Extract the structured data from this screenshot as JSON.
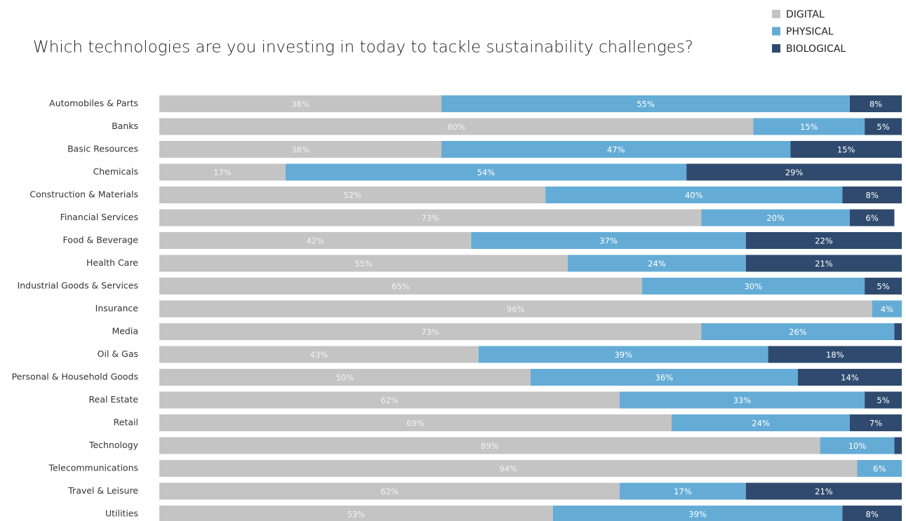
{
  "chart_data": {
    "type": "stacked-bar-horizontal",
    "title": "Which technologies are you investing in today to tackle sustainability challenges?",
    "categories": [
      "Automobiles & Parts",
      "Banks",
      "Basic Resources",
      "Chemicals",
      "Construction & Materials",
      "Financial Services",
      "Food & Beverage",
      "Health Care",
      "Industrial Goods & Services",
      "Insurance",
      "Media",
      "Oil & Gas",
      "Personal & Household Goods",
      "Real Estate",
      "Retail",
      "Technology",
      "Telecommunications",
      "Travel & Leisure",
      "Utilities"
    ],
    "series": [
      {
        "name": "DIGITAL",
        "color": "#c4c4c4",
        "values": [
          38,
          80,
          38,
          17,
          52,
          73,
          42,
          55,
          65,
          96,
          73,
          43,
          50,
          62,
          69,
          89,
          94,
          62,
          53
        ],
        "value_labels": [
          "38%",
          "80%",
          "38%",
          "17%",
          "52%",
          "73%",
          "42%",
          "55%",
          "65%",
          "96%",
          "73%",
          "43%",
          "50%",
          "62%",
          "69%",
          "89%",
          "94%",
          "62%",
          "53%"
        ]
      },
      {
        "name": "PHYSICAL",
        "color": "#64acd6",
        "values": [
          55,
          15,
          47,
          54,
          40,
          20,
          37,
          24,
          30,
          4,
          26,
          39,
          36,
          33,
          24,
          10,
          6,
          17,
          39
        ],
        "value_labels": [
          "55%",
          "15%",
          "47%",
          "54%",
          "40%",
          "20%",
          "37%",
          "24%",
          "30%",
          "4%",
          "26%",
          "39%",
          "36%",
          "33%",
          "24%",
          "10%",
          "6%",
          "17%",
          "39%"
        ]
      },
      {
        "name": "BIOLOGICAL",
        "color": "#2f4a6e",
        "values": [
          8,
          5,
          15,
          29,
          8,
          6,
          22,
          21,
          5,
          0,
          1,
          18,
          14,
          5,
          7,
          1,
          0,
          21,
          8
        ],
        "value_labels": [
          "8%",
          "5%",
          "15%",
          "29%",
          "8%",
          "6%",
          "22%",
          "21%",
          "5%",
          null,
          null,
          "18%",
          "14%",
          "5%",
          "7%",
          null,
          null,
          "21%",
          "8%"
        ]
      }
    ],
    "xlim": [
      0,
      100
    ],
    "legend": "top-right"
  }
}
